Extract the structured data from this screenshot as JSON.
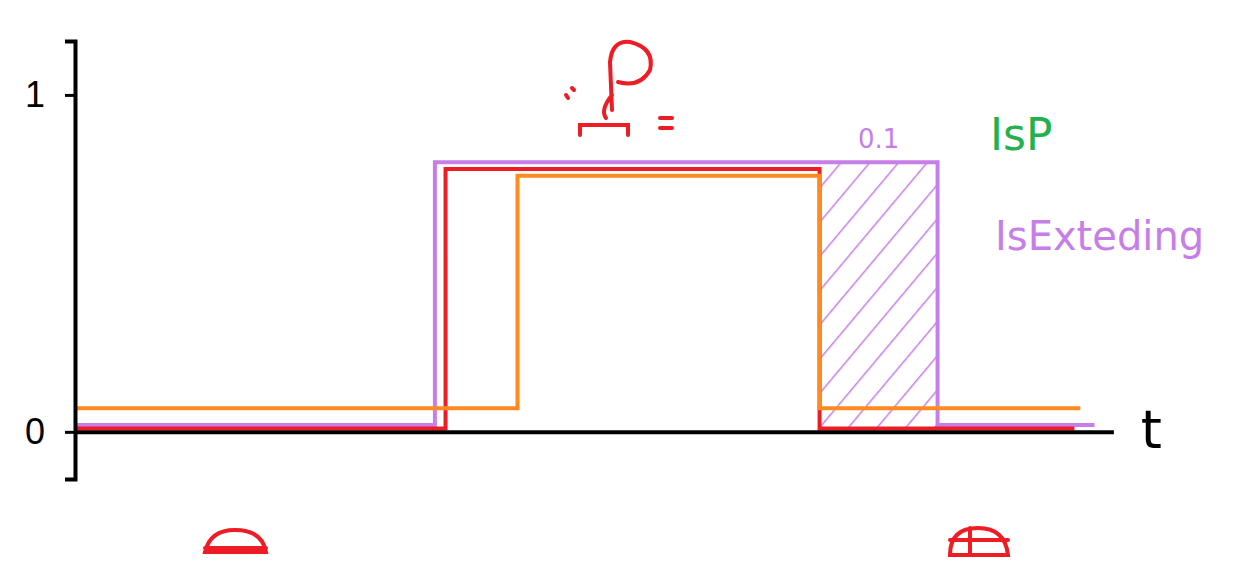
{
  "chart_data": {
    "type": "line",
    "x_label": "t",
    "xlim": [
      0,
      0.88
    ],
    "xticks": [],
    "ylim": [
      -0.14,
      1.16
    ],
    "yticks": [
      0,
      1
    ],
    "tick_labels": "y",
    "grid": false,
    "legend": "right",
    "series": [
      {
        "name": "IsExteding",
        "color": "#c77ee8",
        "line_style": "step",
        "x": [
          0,
          0.305,
          0.731,
          0.864
        ],
        "values": [
          0.02,
          0.8,
          0.02,
          0.02
        ]
      },
      {
        "color": "#ee1c24",
        "line_style": "step",
        "x": [
          0,
          0.314,
          0.631,
          0.847
        ],
        "values": [
          0.01,
          0.78,
          0.01,
          0.01
        ]
      },
      {
        "color": "#ff8a20",
        "line_style": "step",
        "x": [
          0,
          0.375,
          0.631,
          0.852
        ],
        "values": [
          0.07,
          0.76,
          0.07,
          0.07
        ]
      }
    ],
    "annotations": [
      {
        "text": "IsP"
      },
      {
        "text": "0.1",
        "x": [
          0.631,
          0.731
        ]
      }
    ]
  }
}
